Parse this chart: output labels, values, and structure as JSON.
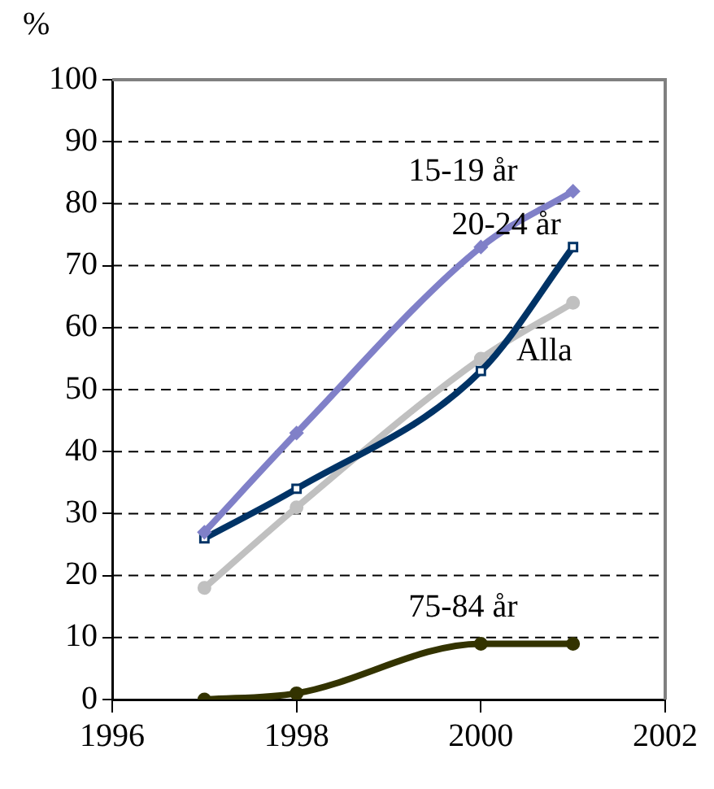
{
  "chart_data": {
    "type": "line",
    "ylabel": "%",
    "x": [
      1997,
      1998,
      2000,
      2001
    ],
    "series": [
      {
        "name": "15-19 år",
        "color": "#8080c8",
        "marker": "diamond",
        "values": [
          27,
          43,
          73,
          82
        ]
      },
      {
        "name": "20-24 år",
        "color": "#003366",
        "marker": "square",
        "values": [
          26,
          34,
          53,
          73
        ]
      },
      {
        "name": "Alla",
        "color": "#c0c0c0",
        "marker": "circle",
        "values": [
          18,
          31,
          55,
          64
        ]
      },
      {
        "name": "75-84 år",
        "color": "#333300",
        "marker": "circle",
        "values": [
          0,
          1,
          9,
          9
        ]
      }
    ],
    "xlim": [
      1996,
      2002
    ],
    "xticks": [
      1996,
      1998,
      2000,
      2002
    ],
    "ylim": [
      0,
      100
    ],
    "yticks": [
      0,
      10,
      20,
      30,
      40,
      50,
      60,
      70,
      80,
      90,
      100
    ],
    "grid": "y",
    "legend": false
  }
}
